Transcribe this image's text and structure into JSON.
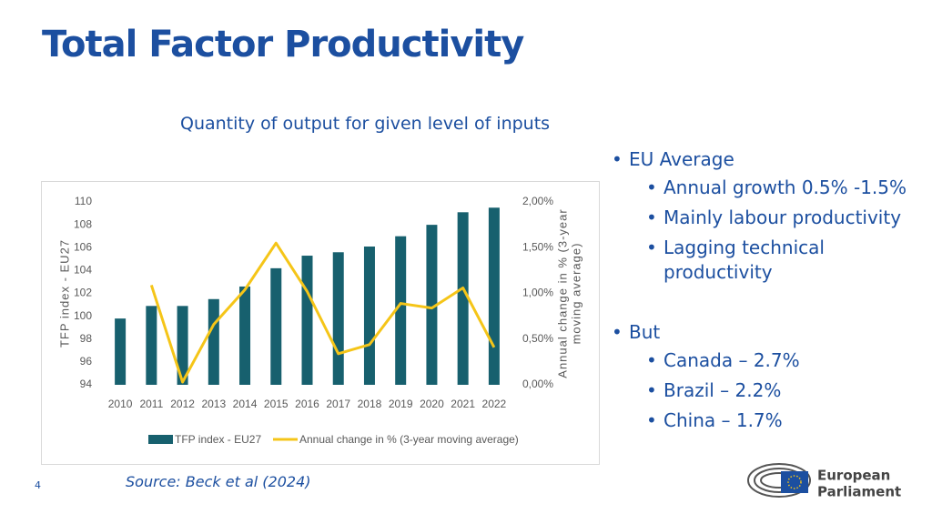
{
  "title": "Total Factor Productivity",
  "subtitle": "Quantity of output for given level of inputs",
  "bullets": [
    {
      "text": "EU Average",
      "items": [
        "Annual growth 0.5% -1.5%",
        "Mainly labour productivity",
        "Lagging technical productivity"
      ]
    },
    {
      "text": "But",
      "items": [
        "Canada – 2.7%",
        "Brazil – 2.2%",
        "China – 1.7%"
      ]
    }
  ],
  "source": "Source: Beck et al (2024)",
  "page_number": "4",
  "logo": [
    "European",
    "Parliament"
  ],
  "chart_data": {
    "type": "bar_line",
    "categories": [
      "2010",
      "2011",
      "2012",
      "2013",
      "2014",
      "2015",
      "2016",
      "2017",
      "2018",
      "2019",
      "2020",
      "2021",
      "2022"
    ],
    "ylabel": "TFP index - EU27",
    "y2label": [
      "Annual change in % (3-year",
      "moving average)"
    ],
    "ylim": [
      94,
      110
    ],
    "yticks": [
      94,
      96,
      98,
      100,
      102,
      104,
      106,
      108,
      110
    ],
    "y2lim": [
      0,
      2
    ],
    "y2ticks": [
      {
        "value": 0,
        "label": "0,00%"
      },
      {
        "value": 0.5,
        "label": "0,50%"
      },
      {
        "value": 1,
        "label": "1,00%"
      },
      {
        "value": 1.5,
        "label": "1,50%"
      },
      {
        "value": 2,
        "label": "2,00%"
      }
    ],
    "grid": false,
    "series": [
      {
        "name": "TFP index - EU27",
        "kind": "bar",
        "color": "#17606e",
        "values": [
          99.8,
          100.9,
          100.9,
          101.5,
          102.6,
          104.2,
          105.3,
          105.6,
          106.1,
          107.0,
          108.0,
          109.1,
          109.5
        ]
      },
      {
        "name": "Annual change in % (3-year moving average)",
        "kind": "line",
        "axis": "y2",
        "color": "#f5c518",
        "values": [
          null,
          1.09,
          0.03,
          0.66,
          1.04,
          1.55,
          1.02,
          0.34,
          0.44,
          0.89,
          0.84,
          1.06,
          0.41
        ]
      }
    ]
  }
}
